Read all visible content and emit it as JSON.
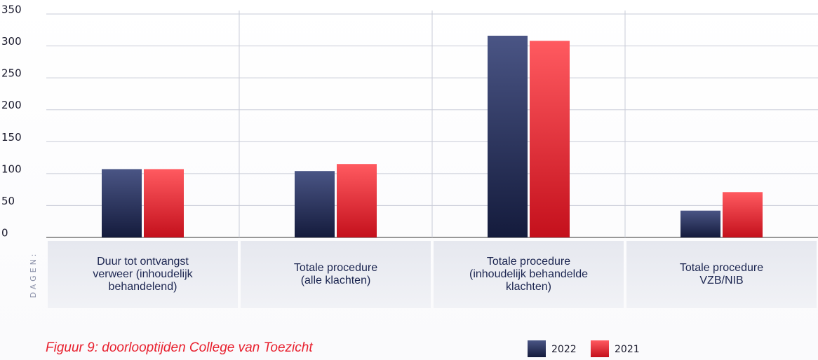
{
  "chart_data": {
    "type": "bar",
    "title": "Figuur 9: doorlooptijden College van Toezicht",
    "y_label": "DAGEN:",
    "categories": [
      "Duur tot ontvangst\nverweer (inhoudelijk\nbehandelend)",
      "Totale procedure\n(alle klachten)",
      "Totale procedure\n(inhoudelijk behandelde\nklachten)",
      "Totale procedure\nVZB/NIB"
    ],
    "series": [
      {
        "name": "2022",
        "color": "#1b2550",
        "values": [
          107,
          104,
          316,
          42
        ]
      },
      {
        "name": "2021",
        "color": "#e8202e",
        "values": [
          107,
          115,
          308,
          71
        ]
      }
    ],
    "ylim": [
      0,
      350
    ],
    "yticks": [
      0,
      50,
      100,
      150,
      200,
      250,
      300,
      350
    ],
    "grid": true
  }
}
